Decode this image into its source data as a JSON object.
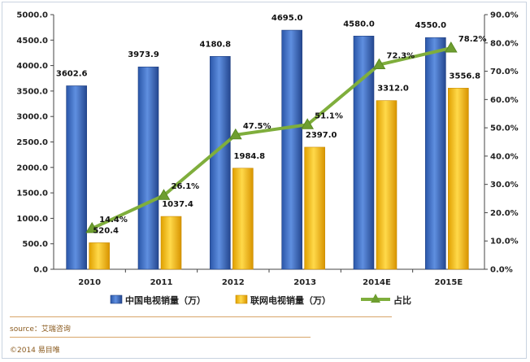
{
  "chart_data": {
    "type": "bar",
    "categories": [
      "2010",
      "2011",
      "2012",
      "2013",
      "2014E",
      "2015E"
    ],
    "series": [
      {
        "name": "中国电视销量（万）",
        "kind": "bar",
        "axis": "left",
        "color": "#3d6fc4",
        "values": [
          3602.6,
          3973.9,
          4180.8,
          4695.0,
          4580.0,
          4550.0
        ],
        "labels": [
          "3602.6",
          "3973.9",
          "4180.8",
          "4695.0",
          "4580.0",
          "4550.0"
        ]
      },
      {
        "name": "联网电视销量（万）",
        "kind": "bar",
        "axis": "left",
        "color": "#f7c11a",
        "values": [
          520.4,
          1037.4,
          1984.8,
          2397.0,
          3312.0,
          3556.8
        ],
        "labels": [
          "520.4",
          "1037.4",
          "1984.8",
          "2397.0",
          "3312.0",
          "3556.8"
        ]
      },
      {
        "name": "占比",
        "kind": "line",
        "axis": "right",
        "color": "#7fae3c",
        "values": [
          14.4,
          26.1,
          47.5,
          51.1,
          72.3,
          78.2
        ],
        "labels": [
          "14.4%",
          "26.1%",
          "47.5%",
          "51.1%",
          "72.3%",
          "78.2%"
        ]
      }
    ],
    "ylim_left": [
      0,
      5000
    ],
    "ylim_right": [
      0,
      90
    ],
    "y_ticks_left": [
      "0.0",
      "500.0",
      "1000.0",
      "1500.0",
      "2000.0",
      "2500.0",
      "3000.0",
      "3500.0",
      "4000.0",
      "4500.0",
      "5000.0"
    ],
    "y_ticks_right": [
      "0.0%",
      "10.0%",
      "20.0%",
      "30.0%",
      "40.0%",
      "50.0%",
      "60.0%",
      "70.0%",
      "80.0%",
      "90.0%"
    ],
    "grid": false,
    "legend": "bottom"
  },
  "footer": {
    "source": "source：艾瑞咨询",
    "copyright": "©2014  易目唯"
  }
}
